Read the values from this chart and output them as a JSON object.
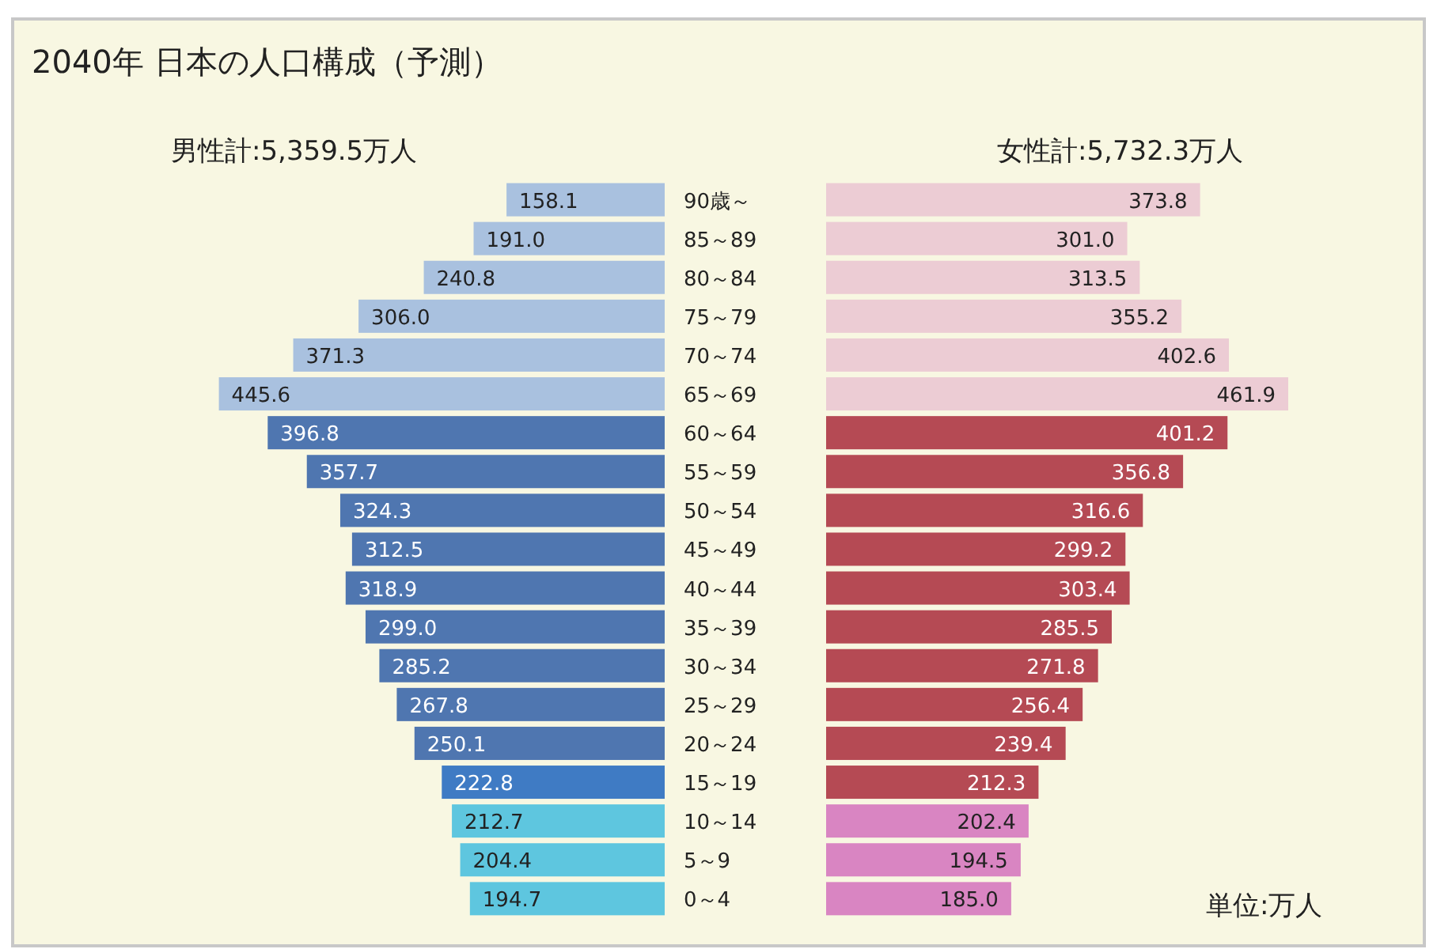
{
  "chart_data": [
    {
      "type": "bar",
      "orientation": "horizontal",
      "title": "2040年 日本の人口構成（予測）",
      "subtitle": "男性計:5,359.5万人",
      "categories": [
        "90歳～",
        "85～89",
        "80～84",
        "75～79",
        "70～74",
        "65～69",
        "60～64",
        "55～59",
        "50～54",
        "45～49",
        "40～44",
        "35～39",
        "30～34",
        "25～29",
        "20～24",
        "15～19",
        "10～14",
        "5～9",
        "0～4"
      ],
      "values": [
        158.1,
        191.0,
        240.8,
        306.0,
        371.3,
        445.6,
        396.8,
        357.7,
        324.3,
        312.5,
        318.9,
        299.0,
        285.2,
        267.8,
        250.1,
        222.8,
        212.7,
        204.4,
        194.7
      ],
      "value_labels": [
        "158.1",
        "191.0",
        "240.8",
        "306.0",
        "371.3",
        "445.6",
        "396.8",
        "357.7",
        "324.3",
        "312.5",
        "318.9",
        "299.0",
        "285.2",
        "267.8",
        "250.1",
        "222.8",
        "212.7",
        "204.4",
        "194.7"
      ],
      "colors": [
        "#a9c1df",
        "#a9c1df",
        "#a9c1df",
        "#a9c1df",
        "#a9c1df",
        "#a9c1df",
        "#4f76b0",
        "#4f76b0",
        "#4f76b0",
        "#4f76b0",
        "#4f76b0",
        "#4f76b0",
        "#4f76b0",
        "#4f76b0",
        "#4f76b0",
        "#3f7bc4",
        "#5ec6df",
        "#5ec6df",
        "#5ec6df"
      ]
    },
    {
      "type": "bar",
      "orientation": "horizontal",
      "subtitle": "女性計:5,732.3万人",
      "annotations": [
        "単位:万人"
      ],
      "categories": [
        null,
        null,
        null,
        null,
        null,
        null,
        null,
        null,
        null,
        null,
        null,
        null,
        null,
        null,
        null,
        null,
        null,
        null,
        null
      ],
      "values": [
        373.8,
        301.0,
        313.5,
        355.2,
        402.6,
        461.9,
        401.2,
        356.8,
        316.6,
        299.2,
        303.4,
        285.5,
        271.8,
        256.4,
        239.4,
        212.3,
        202.4,
        194.5,
        185.0
      ],
      "value_labels": [
        "373.8",
        "301.0",
        "313.5",
        "355.2",
        "402.6",
        "461.9",
        "401.2",
        "356.8",
        "316.6",
        "299.2",
        "303.4",
        "285.5",
        "271.8",
        "256.4",
        "239.4",
        "212.3",
        "202.4",
        "194.5",
        "185.0"
      ],
      "colors": [
        "#ecccd4",
        "#ecccd4",
        "#ecccd4",
        "#ecccd4",
        "#ecccd4",
        "#ecccd4",
        "#b54a54",
        "#b54a54",
        "#b54a54",
        "#b54a54",
        "#b54a54",
        "#b54a54",
        "#b54a54",
        "#b54a54",
        "#b54a54",
        "#b54a54",
        "#d985c2",
        "#d985c2",
        "#d985c2"
      ]
    }
  ]
}
